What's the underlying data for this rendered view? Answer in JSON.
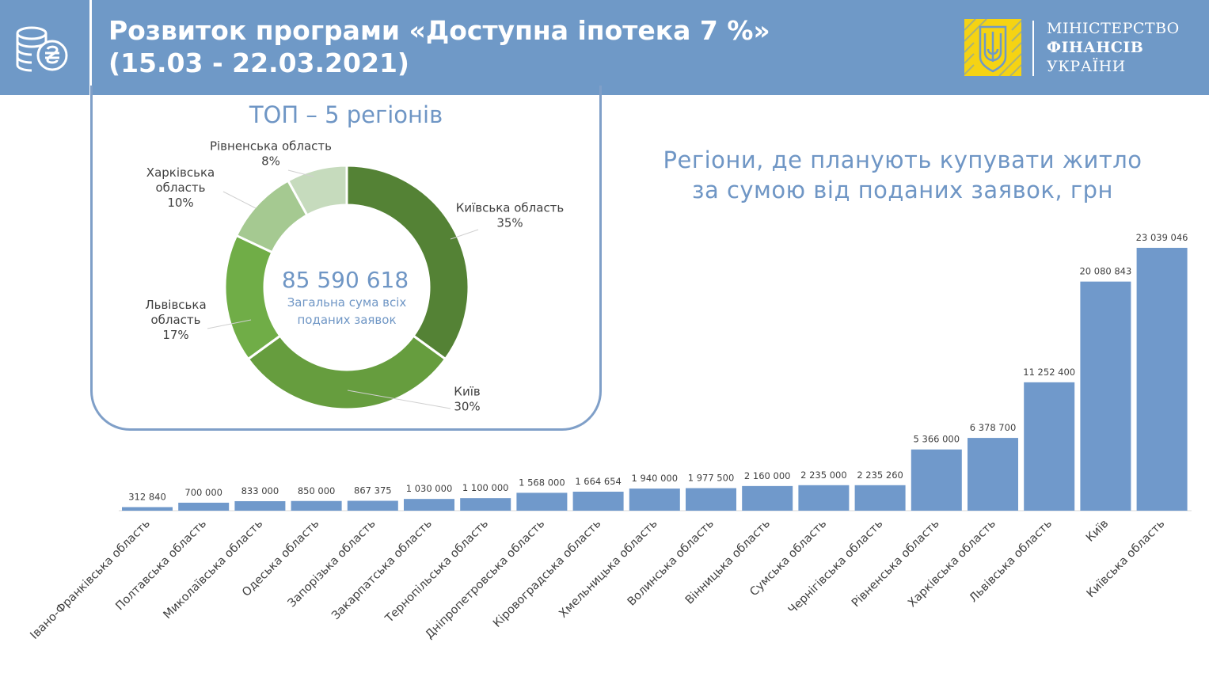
{
  "header": {
    "title_line1": "Розвиток програми «Доступна іпотека 7 %»",
    "title_line2": "(15.03 - 22.03.2021)",
    "logo_icon": "coins-hryvnia-icon",
    "ministry_emblem_icon": "trident-emblem-icon",
    "ministry_line1": "МІНІСТЕРСТВО",
    "ministry_line2": "ФІНАНСІВ",
    "ministry_line3": "УКРАЇНИ"
  },
  "colors": {
    "header_bg": "#6f99c7",
    "accent_text": "#6f96c5",
    "bar": "#7099cb",
    "emblem_yellow": "#f5d313"
  },
  "top5": {
    "title": "ТОП – 5 регіонів",
    "center_value": "85 590 618",
    "center_label_line1": "Загальна  сума всіх",
    "center_label_line2": "поданих заявок"
  },
  "bar_title_line1": "Регіони, де планують купувати житло",
  "bar_title_line2": "за сумою від поданих заявок, грн",
  "chart_data": [
    {
      "type": "pie",
      "title": "ТОП – 5 регіонів",
      "slices": [
        {
          "label_lines": [
            "Київська область"
          ],
          "value_label": "35%",
          "value": 35,
          "color": "#548235"
        },
        {
          "label_lines": [
            "Київ"
          ],
          "value_label": "30%",
          "value": 30,
          "color": "#669d3e"
        },
        {
          "label_lines": [
            "Львівська",
            "область"
          ],
          "value_label": "17%",
          "value": 17,
          "color": "#70ad47"
        },
        {
          "label_lines": [
            "Харківська",
            "область"
          ],
          "value_label": "10%",
          "value": 10,
          "color": "#a5c991"
        },
        {
          "label_lines": [
            "Рівненська область"
          ],
          "value_label": "8%",
          "value": 8,
          "color": "#c6dbbd"
        }
      ]
    },
    {
      "type": "bar",
      "title": "Регіони, де планують купувати житло за сумою від поданих заявок, грн",
      "ylim": [
        0,
        25000000
      ],
      "grid": false,
      "categories": [
        "Івано-Франківська область",
        "Полтавська область",
        "Миколаївська область",
        "Одеська область",
        "Запорізька  область",
        "Закарпатська область",
        "Тернопільська область",
        "Дніпропетровська область",
        "Кіровоградська область",
        "Хмельницька область",
        "Волинська область",
        "Вінницька область",
        "Сумська область",
        "Чернігівська область",
        "Рівненська область",
        "Харківська область",
        "Львівська область",
        "Київ",
        "Київська область"
      ],
      "values": [
        312840,
        700000,
        833000,
        850000,
        867375,
        1030000,
        1100000,
        1568000,
        1664654,
        1940000,
        1977500,
        2160000,
        2235000,
        2235260,
        5366000,
        6378700,
        11252400,
        20080843,
        23039046
      ],
      "value_labels": [
        "312 840",
        "700 000",
        "833 000",
        "850 000",
        "867 375",
        "1 030 000",
        "1 100 000",
        "1 568 000",
        "1 664 654",
        "1 940 000",
        "1 977 500",
        "2 160 000",
        "2 235 000",
        "2 235 260",
        "5 366 000",
        "6 378 700",
        "11 252 400",
        "20 080 843",
        "23 039 046"
      ]
    }
  ]
}
